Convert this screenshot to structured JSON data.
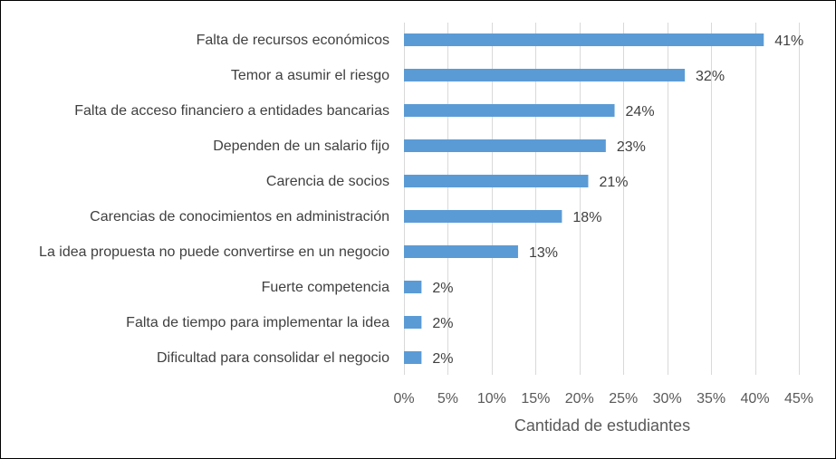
{
  "chart_data": {
    "type": "bar",
    "orientation": "horizontal",
    "title": "",
    "xlabel": "Cantidad de estudiantes",
    "ylabel": "",
    "categories": [
      "Falta de recursos económicos",
      "Temor a asumir el riesgo",
      "Falta de acceso financiero a entidades bancarias",
      "Dependen de un salario fijo",
      "Carencia de socios",
      "Carencias de conocimientos en administración",
      "La idea propuesta no puede convertirse en un negocio",
      "Fuerte competencia",
      "Falta de tiempo para implementar la idea",
      "Dificultad para consolidar el negocio"
    ],
    "values": [
      41,
      32,
      24,
      23,
      21,
      18,
      13,
      2,
      2,
      2
    ],
    "value_labels": [
      "41%",
      "32%",
      "24%",
      "23%",
      "21%",
      "18%",
      "13%",
      "2%",
      "2%",
      "2%"
    ],
    "xlim": [
      0,
      45
    ],
    "xticks": [
      0,
      5,
      10,
      15,
      20,
      25,
      30,
      35,
      40,
      45
    ],
    "xtick_labels": [
      "0%",
      "5%",
      "10%",
      "15%",
      "20%",
      "25%",
      "30%",
      "35%",
      "40%",
      "45%"
    ],
    "grid": true,
    "legend": "none",
    "bar_color": "#5b9bd5"
  }
}
